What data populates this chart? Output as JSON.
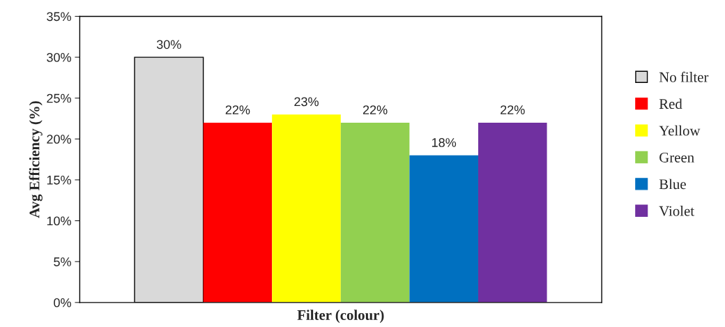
{
  "chart_data": {
    "type": "bar",
    "xlabel": "Filter (colour)",
    "ylabel": "Avg Efficiency (%)",
    "categories": [
      null
    ],
    "series": [
      {
        "name": "No filter",
        "color": "#d9d9d9",
        "values": [
          30
        ],
        "value_labels": [
          "30%"
        ]
      },
      {
        "name": "Red",
        "color": "#ff0000",
        "values": [
          22
        ],
        "value_labels": [
          "22%"
        ]
      },
      {
        "name": "Yellow",
        "color": "#ffff00",
        "values": [
          23
        ],
        "value_labels": [
          "23%"
        ]
      },
      {
        "name": "Green",
        "color": "#92d050",
        "values": [
          22
        ],
        "value_labels": [
          "22%"
        ]
      },
      {
        "name": "Blue",
        "color": "#0070c0",
        "values": [
          18
        ],
        "value_labels": [
          "18%"
        ]
      },
      {
        "name": "Violet",
        "color": "#7030a0",
        "values": [
          22
        ],
        "value_labels": [
          "22%"
        ]
      }
    ],
    "ylim": [
      0,
      35
    ],
    "yticks": [
      {
        "value": 0,
        "label": "0%"
      },
      {
        "value": 5,
        "label": "5%"
      },
      {
        "value": 10,
        "label": "10%"
      },
      {
        "value": 15,
        "label": "15%"
      },
      {
        "value": 20,
        "label": "20%"
      },
      {
        "value": 25,
        "label": "25%"
      },
      {
        "value": 30,
        "label": "30%"
      },
      {
        "value": 35,
        "label": "35%"
      }
    ],
    "grid": false,
    "legend": "right"
  }
}
